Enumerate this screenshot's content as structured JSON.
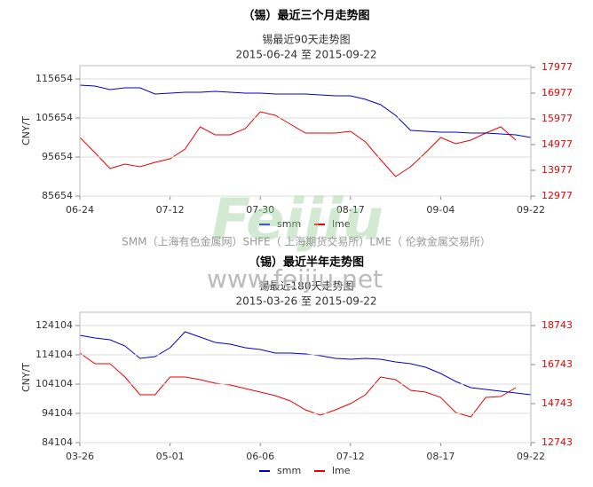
{
  "chart_data": [
    {
      "type": "line",
      "title": "（锡）最近三个月走势图",
      "subtitle": "锡最近90天走势图",
      "date_range": "2015-06-24 至 2015-09-22",
      "y_label": "CNY/T",
      "categories": [
        "06-24",
        null,
        null,
        null,
        null,
        null,
        "07-12",
        null,
        null,
        null,
        null,
        null,
        "07-30",
        null,
        null,
        null,
        null,
        null,
        "08-17",
        null,
        null,
        null,
        null,
        null,
        "09-04",
        null,
        null,
        null,
        null,
        null,
        "09-22"
      ],
      "series": [
        {
          "name": "smm",
          "color": "#0000cc",
          "axis": "y",
          "values": [
            114063,
            113836,
            112927,
            113381,
            113381,
            111790,
            112018,
            112245,
            112245,
            112472,
            112245,
            112018,
            112018,
            111790,
            111790,
            111790,
            111563,
            111336,
            111336,
            110427,
            109063,
            106336,
            102472,
            102245,
            102018,
            102018,
            101790,
            101790,
            101563,
            101336,
            100654
          ]
        },
        {
          "name": "lme",
          "color": "#ee0000",
          "axis": "y2",
          "values": [
            15253,
            14667,
            14046,
            14218,
            14115,
            14287,
            14425,
            14805,
            15667,
            15356,
            15356,
            15598,
            16253,
            16115,
            15770,
            15425,
            15425,
            15425,
            15494,
            15080,
            14391,
            13736,
            14115,
            14667,
            15253,
            15011,
            15149,
            15425,
            15667,
            15149,
            null
          ]
        }
      ],
      "ylim": [
        85654,
        119063
      ],
      "yticks": [
        85654,
        95654,
        105654,
        115654
      ],
      "y2lim": [
        12977,
        18046
      ],
      "y2ticks": [
        12977,
        13977,
        14977,
        15977,
        16977,
        17977
      ],
      "grid": true,
      "legend": "bottom"
    },
    {
      "type": "line",
      "title": "（锡）最近半年走势图",
      "subtitle": "锡最近180天走势图",
      "date_range": "2015-03-26 至 2015-09-22",
      "y_label": "CNY/T",
      "categories": [
        "03-26",
        null,
        null,
        null,
        null,
        null,
        "05-01",
        null,
        null,
        null,
        null,
        null,
        "06-06",
        null,
        null,
        null,
        null,
        null,
        "07-12",
        null,
        null,
        null,
        null,
        null,
        "08-17",
        null,
        null,
        null,
        null,
        null,
        "09-22"
      ],
      "series": [
        {
          "name": "smm",
          "color": "#0000cc",
          "axis": "y",
          "values": [
            120771,
            119861,
            119256,
            117134,
            112892,
            113498,
            116528,
            121983,
            120165,
            118347,
            117740,
            116528,
            115922,
            114710,
            114710,
            114407,
            113801,
            112892,
            112589,
            112892,
            112589,
            111680,
            111074,
            109862,
            107741,
            105013,
            102892,
            102286,
            101680,
            101074,
            100468
          ]
        },
        {
          "name": "lme",
          "color": "#ee0000",
          "axis": "y2",
          "values": [
            17334,
            16789,
            16789,
            16107,
            15198,
            15198,
            16107,
            16107,
            15970,
            15789,
            15698,
            15516,
            15334,
            15152,
            14880,
            14425,
            14152,
            14425,
            14743,
            15198,
            16107,
            15970,
            15425,
            15334,
            15061,
            14289,
            14061,
            15061,
            15107,
            15561,
            null
          ]
        }
      ],
      "ylim": [
        84104,
        128650
      ],
      "yticks": [
        84104,
        94104,
        104104,
        114104,
        124104
      ],
      "y2lim": [
        12743,
        19425
      ],
      "y2ticks": [
        12743,
        14743,
        16743,
        18743
      ],
      "grid": true,
      "legend": "bottom"
    }
  ],
  "watermarks": {
    "logo": "Feijiu",
    "sources": "SMM（上海有色金属网）SHFE（ 上海期货交易所）LME（ 伦敦金属交易所）",
    "site": "www.feijiu.net"
  }
}
